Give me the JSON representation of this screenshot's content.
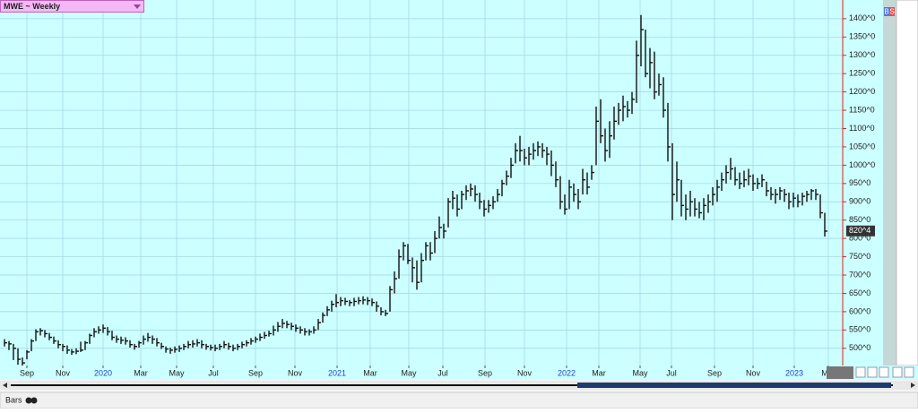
{
  "header": {
    "title": "MWE ~ Weekly"
  },
  "toolbar": {
    "mode": "Bars",
    "buttons": [
      "B",
      "S"
    ]
  },
  "chart_data": {
    "type": "hlc",
    "color": "#111111",
    "grid": true,
    "high": [
      525,
      520,
      512,
      500,
      475,
      495,
      525,
      552,
      555,
      550,
      542,
      532,
      522,
      512,
      508,
      498,
      500,
      518,
      520,
      540,
      555,
      560,
      565,
      558,
      548,
      535,
      532,
      530,
      522,
      512,
      520,
      535,
      542,
      535,
      528,
      515,
      505,
      502,
      505,
      508,
      512,
      520,
      522,
      525,
      522,
      512,
      510,
      510,
      512,
      520,
      515,
      510,
      512,
      518,
      522,
      528,
      532,
      540,
      545,
      548,
      562,
      572,
      580,
      575,
      570,
      565,
      560,
      555,
      552,
      560,
      580,
      598,
      615,
      630,
      648,
      640,
      638,
      632,
      638,
      640,
      642,
      640,
      636,
      628,
      612,
      605,
      670,
      710,
      770,
      790,
      785,
      748,
      740,
      760,
      790,
      790,
      820,
      860,
      840,
      910,
      930,
      920,
      930,
      945,
      950,
      945,
      925,
      905,
      905,
      915,
      935,
      960,
      985,
      1020,
      1060,
      1080,
      1045,
      1050,
      1060,
      1065,
      1060,
      1050,
      1040,
      1010,
      970,
      920,
      960,
      950,
      935,
      990,
      980,
      1000,
      1160,
      1180,
      1100,
      1120,
      1160,
      1170,
      1190,
      1175,
      1200,
      1340,
      1410,
      1370,
      1320,
      1310,
      1250,
      1240,
      1170,
      1060,
      1010,
      960,
      920,
      930,
      910,
      900,
      910,
      920,
      940,
      960,
      980,
      1000,
      1020,
      995,
      980,
      985,
      990,
      975,
      965,
      975,
      955,
      940,
      935,
      940,
      935,
      925,
      925,
      920,
      925,
      930,
      935,
      935,
      920,
      870
    ],
    "low": [
      505,
      495,
      468,
      455,
      452,
      470,
      492,
      520,
      535,
      530,
      522,
      512,
      500,
      492,
      485,
      482,
      484,
      490,
      495,
      512,
      530,
      540,
      542,
      535,
      522,
      515,
      512,
      510,
      502,
      496,
      502,
      510,
      518,
      512,
      505,
      498,
      488,
      485,
      488,
      490,
      495,
      500,
      502,
      505,
      500,
      496,
      494,
      492,
      495,
      500,
      496,
      492,
      495,
      500,
      505,
      510,
      515,
      520,
      526,
      532,
      535,
      545,
      555,
      555,
      550,
      545,
      540,
      535,
      535,
      540,
      550,
      570,
      588,
      600,
      612,
      615,
      618,
      615,
      615,
      620,
      620,
      618,
      615,
      600,
      590,
      588,
      600,
      650,
      690,
      740,
      730,
      680,
      660,
      680,
      740,
      740,
      760,
      800,
      800,
      830,
      880,
      860,
      880,
      905,
      915,
      900,
      880,
      860,
      870,
      880,
      900,
      915,
      945,
      965,
      1005,
      1010,
      1000,
      1000,
      1015,
      1025,
      1020,
      1000,
      970,
      940,
      880,
      865,
      880,
      900,
      880,
      920,
      920,
      960,
      1000,
      1060,
      1010,
      1020,
      1070,
      1110,
      1120,
      1130,
      1140,
      1170,
      1270,
      1240,
      1210,
      1180,
      1190,
      1130,
      1010,
      850,
      900,
      860,
      850,
      860,
      860,
      855,
      850,
      870,
      890,
      900,
      930,
      950,
      960,
      945,
      935,
      940,
      945,
      930,
      935,
      940,
      915,
      905,
      895,
      905,
      900,
      880,
      885,
      885,
      890,
      900,
      905,
      905,
      855,
      805
    ],
    "close": [
      515,
      512,
      500,
      470,
      460,
      490,
      520,
      545,
      548,
      540,
      530,
      520,
      510,
      505,
      495,
      490,
      492,
      495,
      515,
      535,
      545,
      550,
      555,
      545,
      530,
      525,
      522,
      520,
      510,
      505,
      515,
      525,
      530,
      525,
      515,
      505,
      498,
      495,
      497,
      500,
      505,
      510,
      512,
      515,
      510,
      505,
      502,
      500,
      505,
      510,
      505,
      500,
      505,
      510,
      515,
      520,
      525,
      530,
      535,
      540,
      550,
      560,
      568,
      565,
      560,
      555,
      550,
      545,
      545,
      550,
      570,
      590,
      605,
      620,
      625,
      630,
      628,
      625,
      628,
      630,
      632,
      630,
      625,
      615,
      600,
      595,
      660,
      690,
      750,
      780,
      740,
      720,
      680,
      740,
      780,
      760,
      800,
      830,
      820,
      900,
      910,
      880,
      920,
      930,
      935,
      920,
      900,
      880,
      890,
      900,
      920,
      950,
      970,
      1000,
      1040,
      1040,
      1020,
      1030,
      1040,
      1050,
      1040,
      1030,
      1000,
      960,
      900,
      880,
      940,
      920,
      900,
      960,
      940,
      980,
      1120,
      1080,
      1040,
      1080,
      1120,
      1150,
      1160,
      1150,
      1180,
      1300,
      1370,
      1250,
      1280,
      1200,
      1220,
      1150,
      1050,
      920,
      960,
      890,
      880,
      900,
      880,
      870,
      890,
      900,
      920,
      940,
      960,
      980,
      990,
      960,
      950,
      960,
      970,
      950,
      950,
      960,
      930,
      920,
      920,
      930,
      920,
      900,
      910,
      900,
      915,
      920,
      930,
      920,
      870,
      820
    ],
    "last_price": {
      "value": 820.5,
      "label": "820^4"
    },
    "xlim": [
      -1,
      187
    ],
    "xticks": [
      {
        "value": 5,
        "label": "Sep"
      },
      {
        "value": 13,
        "label": "Nov"
      },
      {
        "value": 22,
        "label": "2020"
      },
      {
        "value": 30.4,
        "label": "Mar"
      },
      {
        "value": 38.4,
        "label": "May"
      },
      {
        "value": 46.6,
        "label": "Jul"
      },
      {
        "value": 56,
        "label": "Sep"
      },
      {
        "value": 64.8,
        "label": "Nov"
      },
      {
        "value": 74.2,
        "label": "2021"
      },
      {
        "value": 81.6,
        "label": "Mar"
      },
      {
        "value": 90.2,
        "label": "May"
      },
      {
        "value": 97.8,
        "label": "Jul"
      },
      {
        "value": 107.2,
        "label": "Sep"
      },
      {
        "value": 116,
        "label": "Nov"
      },
      {
        "value": 125.4,
        "label": "2022"
      },
      {
        "value": 132.6,
        "label": "Mar"
      },
      {
        "value": 141.8,
        "label": "May"
      },
      {
        "value": 148.8,
        "label": "Jul"
      },
      {
        "value": 158.4,
        "label": "Sep"
      },
      {
        "value": 167,
        "label": "Nov"
      },
      {
        "value": 176.2,
        "label": "2023"
      },
      {
        "value": 183.8,
        "label": "Mar"
      }
    ],
    "ylim": [
      453,
      1451
    ],
    "yticks": [
      {
        "value": 500,
        "label": "500^0"
      },
      {
        "value": 550,
        "label": "550^0"
      },
      {
        "value": 600,
        "label": "600^0"
      },
      {
        "value": 650,
        "label": "650^0"
      },
      {
        "value": 700,
        "label": "700^0"
      },
      {
        "value": 750,
        "label": "750^0"
      },
      {
        "value": 800,
        "label": "800^0"
      },
      {
        "value": 850,
        "label": "850^0"
      },
      {
        "value": 900,
        "label": "900^0"
      },
      {
        "value": 950,
        "label": "950^0"
      },
      {
        "value": 1000,
        "label": "1000^0"
      },
      {
        "value": 1050,
        "label": "1050^0"
      },
      {
        "value": 1100,
        "label": "1100^0"
      },
      {
        "value": 1150,
        "label": "1150^0"
      },
      {
        "value": 1200,
        "label": "1200^0"
      },
      {
        "value": 1250,
        "label": "1250^0"
      },
      {
        "value": 1300,
        "label": "1300^0"
      },
      {
        "value": 1350,
        "label": "1350^0"
      },
      {
        "value": 1400,
        "label": "1400^0"
      }
    ]
  }
}
